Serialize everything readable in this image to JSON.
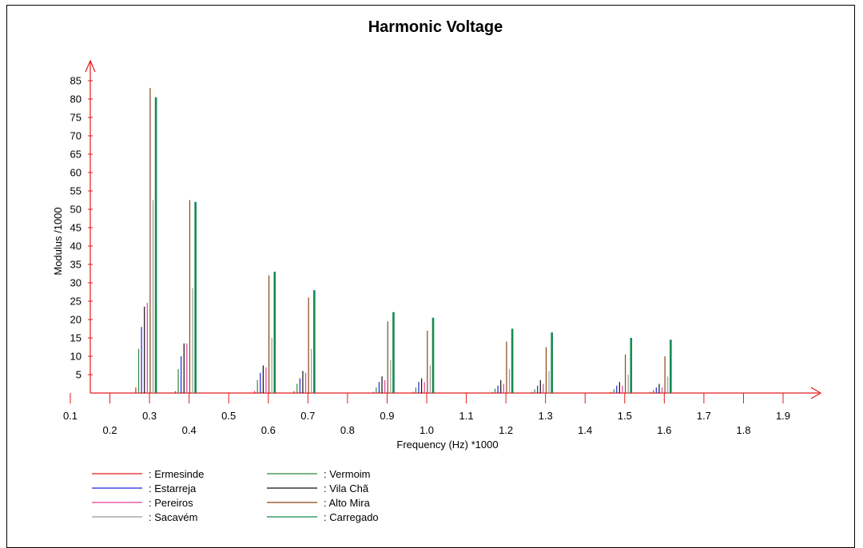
{
  "chart_data": {
    "type": "bar",
    "title": "Harmonic Voltage",
    "xlabel": "Frequency (Hz) *1000",
    "ylabel": "Modulus /1000",
    "xlim": [
      0.1,
      1.9
    ],
    "ylim": [
      0,
      85
    ],
    "xticks_top_row": [
      "0.1",
      "0.3",
      "0.5",
      "0.7",
      "0.9",
      "1.1",
      "1.3",
      "1.5",
      "1.7",
      "1.9"
    ],
    "xticks_bottom_row": [
      "0.2",
      "0.4",
      "0.6",
      "0.8",
      "1.0",
      "1.2",
      "1.4",
      "1.6",
      "1.8"
    ],
    "yticks": [
      "5",
      "10",
      "15",
      "20",
      "25",
      "30",
      "35",
      "40",
      "45",
      "50",
      "55",
      "60",
      "65",
      "70",
      "75",
      "80",
      "85"
    ],
    "grid": false,
    "legend_position": "bottom-left",
    "x": [
      0.3,
      0.4,
      0.6,
      0.7,
      0.9,
      1.0,
      1.2,
      1.3,
      1.5,
      1.6
    ],
    "series": [
      {
        "name": "Ermesinde",
        "color": "#e31a1c",
        "values": [
          1.5,
          0.5,
          0.5,
          0.5,
          0.3,
          0.3,
          0.3,
          0.3,
          0.3,
          0.3
        ]
      },
      {
        "name": "Vermoim",
        "color": "#2e8b3e",
        "values": [
          12,
          6.5,
          3.5,
          2.5,
          1.5,
          1.5,
          1.2,
          1.0,
          1.0,
          0.8
        ]
      },
      {
        "name": "Estarreja",
        "color": "#2222dd",
        "values": [
          18,
          10,
          5.5,
          4.0,
          3.0,
          3.0,
          2.0,
          2.0,
          2.0,
          1.5
        ]
      },
      {
        "name": "Vila Chã",
        "color": "#111111",
        "values": [
          23.5,
          13.5,
          7.5,
          6.0,
          4.5,
          4.0,
          3.5,
          3.5,
          3.0,
          2.5
        ]
      },
      {
        "name": "Pereiros",
        "color": "#e0409a",
        "values": [
          24.5,
          13.5,
          7.0,
          5.5,
          3.5,
          3.0,
          2.5,
          2.5,
          2.0,
          1.5
        ]
      },
      {
        "name": "Alto Mira",
        "color": "#8b4513",
        "values": [
          83,
          52.5,
          32,
          26,
          19.5,
          17,
          14,
          12.5,
          10.5,
          10
        ]
      },
      {
        "name": "Sacavém",
        "color": "#999999",
        "values": [
          52.5,
          28.5,
          15,
          12,
          9,
          7.5,
          6.5,
          6,
          5,
          4.5
        ]
      },
      {
        "name": "Carregado",
        "color": "#138a52",
        "values": [
          80.5,
          52,
          33,
          28,
          22,
          20.5,
          17.5,
          16.5,
          15,
          14.5
        ]
      }
    ],
    "legend_columns": [
      [
        "Ermesinde",
        "Estarreja",
        "Pereiros",
        "Sacavém"
      ],
      [
        "Vermoim",
        "Vila Chã",
        "Alto Mira",
        "Carregado"
      ]
    ],
    "axis_color": "#e31a1c"
  }
}
